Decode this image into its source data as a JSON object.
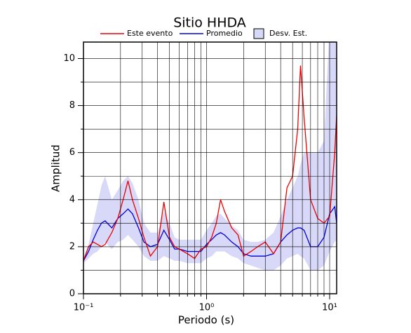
{
  "chart_data": {
    "type": "line",
    "title": "Sitio HHDA",
    "xlabel": "Periodo (s)",
    "ylabel": "Amplitud",
    "xscale": "log",
    "grid": true,
    "xlim": [
      0.1,
      11.4
    ],
    "ylim": [
      0,
      10.7
    ],
    "xticks": [
      {
        "value": 0.1,
        "label": "10⁻¹"
      },
      {
        "value": 1,
        "label": "10⁰"
      },
      {
        "value": 10,
        "label": "10¹"
      }
    ],
    "xminorticks": [
      0.2,
      0.3,
      0.4,
      0.5,
      0.6,
      0.7,
      0.8,
      0.9,
      2,
      3,
      4,
      5,
      6,
      7,
      8,
      9
    ],
    "yticks": [
      0,
      2,
      4,
      6,
      8,
      10
    ],
    "yminorticks": [
      1,
      3,
      5,
      7,
      9
    ],
    "x": [
      0.1,
      0.11,
      0.12,
      0.13,
      0.14,
      0.15,
      0.17,
      0.19,
      0.21,
      0.23,
      0.25,
      0.28,
      0.31,
      0.35,
      0.4,
      0.45,
      0.5,
      0.55,
      0.6,
      0.7,
      0.8,
      0.9,
      1.0,
      1.1,
      1.2,
      1.3,
      1.4,
      1.6,
      1.8,
      2.0,
      2.3,
      2.6,
      3.0,
      3.5,
      4.0,
      4.5,
      5.0,
      5.5,
      5.8,
      6.2,
      7.0,
      8.0,
      9.0,
      10,
      11,
      11.4
    ],
    "band": {
      "name": "Desv. Est.",
      "color": "#d8d8f8",
      "lower": [
        1.3,
        1.5,
        1.7,
        1.8,
        2.0,
        2.2,
        1.9,
        2.2,
        2.3,
        2.5,
        2.3,
        2.0,
        1.6,
        1.4,
        1.4,
        1.6,
        1.5,
        1.4,
        1.4,
        1.3,
        1.3,
        1.3,
        1.5,
        1.6,
        1.8,
        1.8,
        1.8,
        1.6,
        1.5,
        1.3,
        1.2,
        1.1,
        1.0,
        1.0,
        1.2,
        1.5,
        1.6,
        1.7,
        1.6,
        1.5,
        1.0,
        1.0,
        1.2,
        1.8,
        2.2,
        2.3
      ],
      "upper": [
        1.5,
        2.1,
        3.0,
        3.8,
        4.6,
        5.0,
        4.0,
        4.4,
        4.8,
        5.0,
        4.7,
        4.0,
        3.0,
        2.6,
        2.6,
        3.5,
        3.0,
        2.4,
        2.3,
        2.3,
        2.3,
        2.3,
        2.7,
        3.0,
        3.3,
        3.4,
        3.2,
        2.9,
        2.7,
        2.3,
        2.2,
        2.2,
        2.3,
        2.6,
        3.3,
        4.0,
        4.5,
        5.0,
        5.5,
        6.0,
        6.0,
        6.0,
        6.5,
        11.5,
        11.5,
        11.5
      ]
    },
    "series": [
      {
        "name": "Este evento",
        "color": "#ee0000",
        "values": [
          1.4,
          2.0,
          2.2,
          2.1,
          2.0,
          2.1,
          2.6,
          3.2,
          4.0,
          4.8,
          4.0,
          3.2,
          2.4,
          1.6,
          2.0,
          3.9,
          2.4,
          2.0,
          1.9,
          1.7,
          1.5,
          1.9,
          2.0,
          2.4,
          3.0,
          4.0,
          3.5,
          2.8,
          2.5,
          1.6,
          1.8,
          2.0,
          2.2,
          1.7,
          2.2,
          4.5,
          5.0,
          7.0,
          9.7,
          7.5,
          4.0,
          3.2,
          3.0,
          3.3,
          6.0,
          7.6
        ]
      },
      {
        "name": "Promedio",
        "color": "#0000dd",
        "values": [
          1.4,
          1.8,
          2.3,
          2.7,
          3.0,
          3.1,
          2.8,
          3.2,
          3.4,
          3.6,
          3.4,
          2.8,
          2.2,
          2.0,
          2.1,
          2.7,
          2.3,
          1.9,
          1.9,
          1.8,
          1.8,
          1.8,
          2.1,
          2.3,
          2.5,
          2.6,
          2.5,
          2.2,
          2.0,
          1.7,
          1.6,
          1.6,
          1.6,
          1.7,
          2.2,
          2.5,
          2.7,
          2.8,
          2.8,
          2.7,
          2.0,
          2.0,
          2.4,
          3.4,
          3.7,
          3.0
        ]
      }
    ]
  }
}
